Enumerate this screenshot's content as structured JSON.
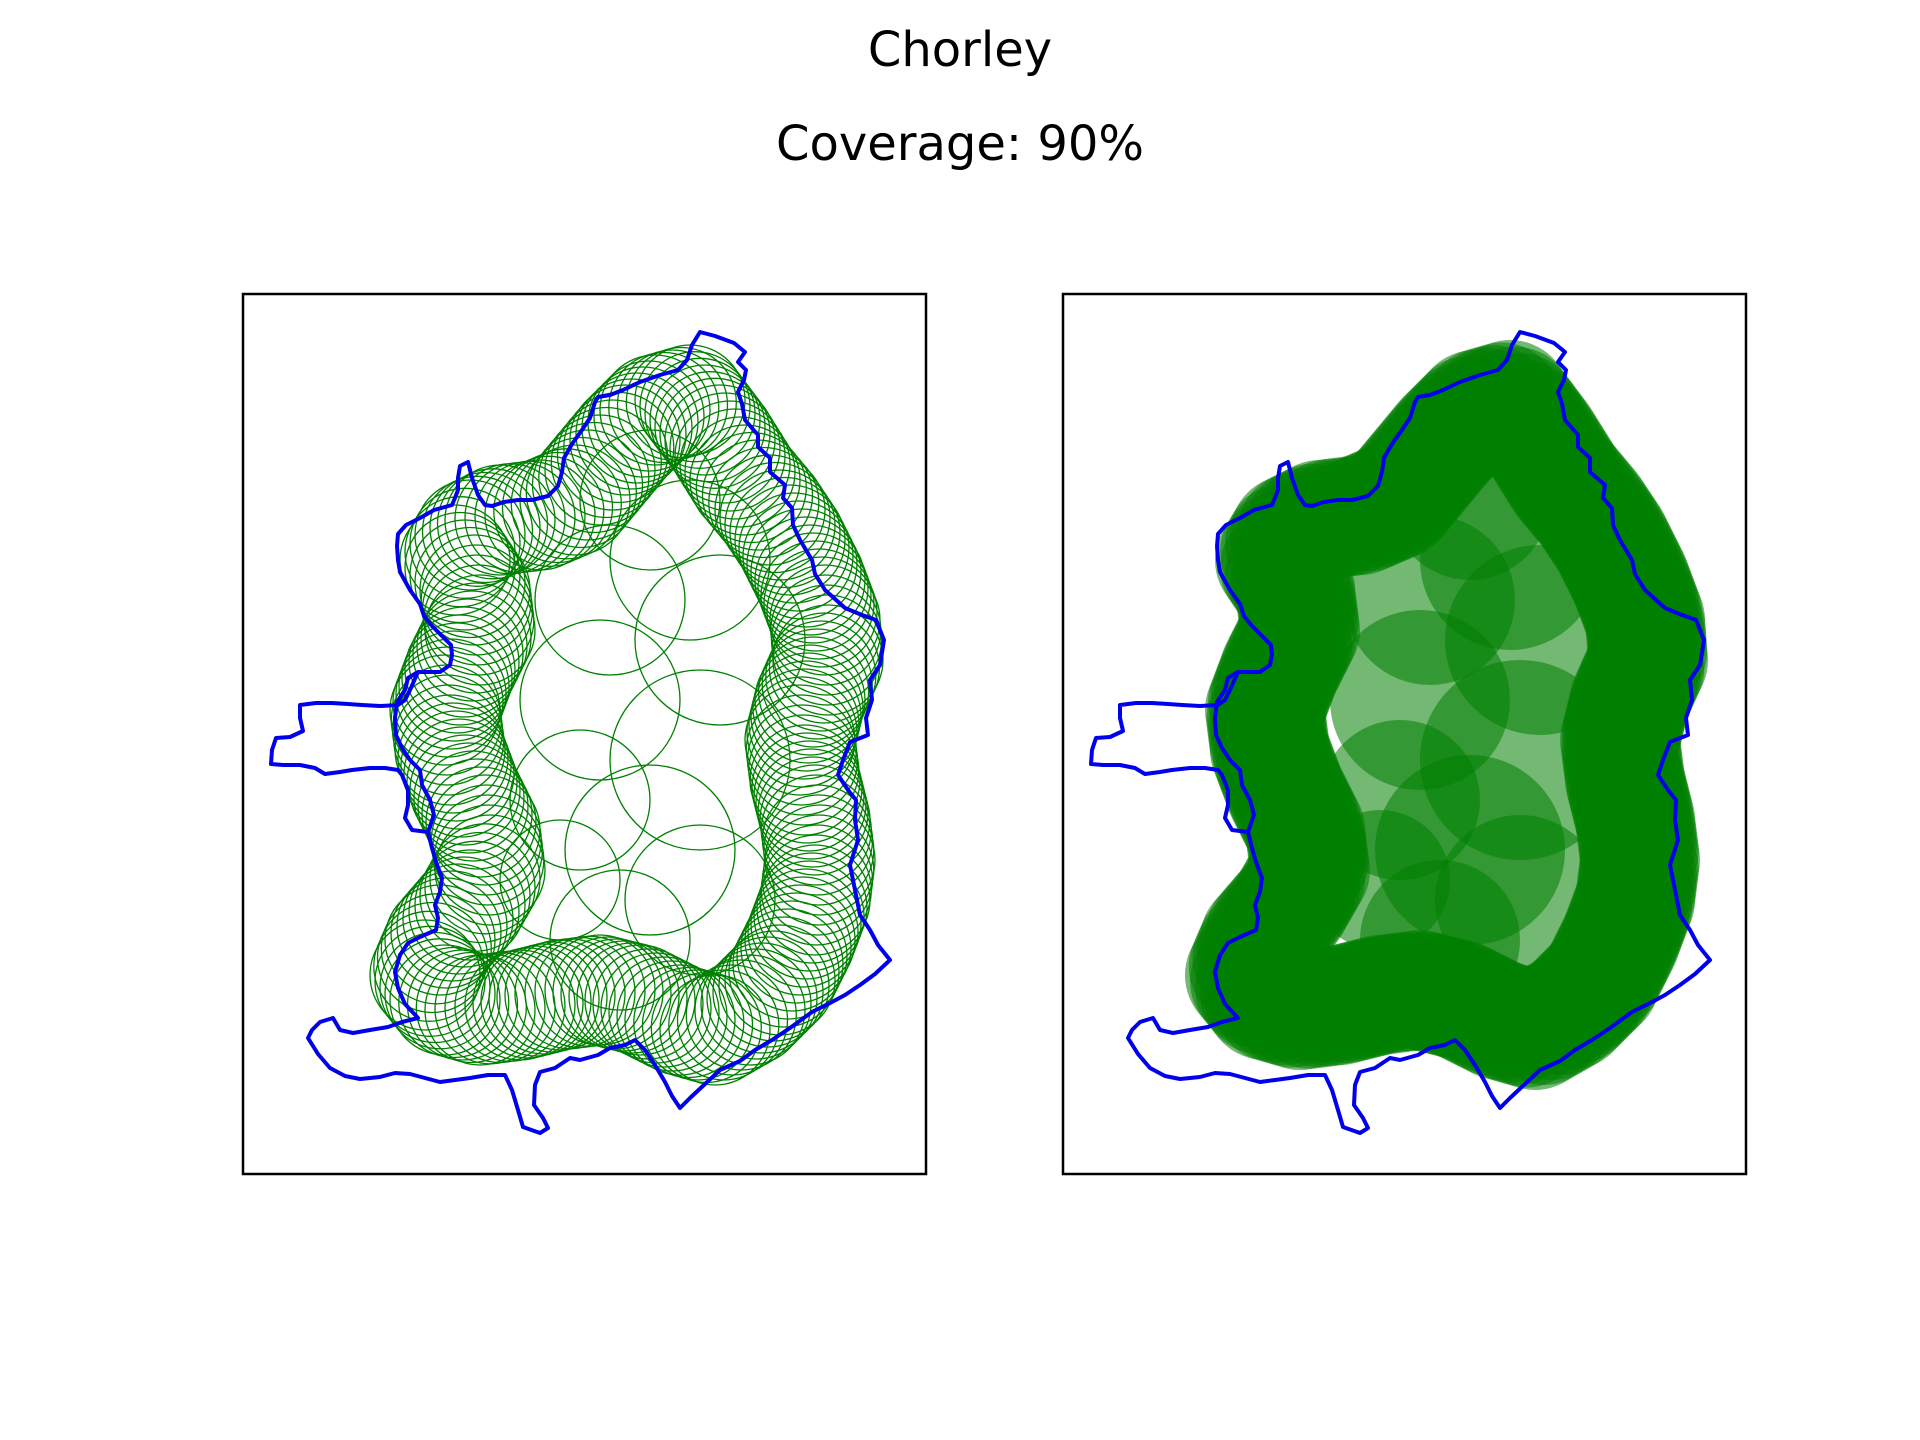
{
  "figure": {
    "title": "Chorley",
    "subtitle": "Coverage: 90%"
  },
  "colors": {
    "boundary": "#0000ee",
    "coverage": "#008000",
    "axes_frame": "#000000",
    "background": "#ffffff"
  },
  "panels": [
    {
      "id": "left",
      "style": "outline",
      "description_shown": false
    },
    {
      "id": "right",
      "style": "filled",
      "description_shown": false
    }
  ]
}
